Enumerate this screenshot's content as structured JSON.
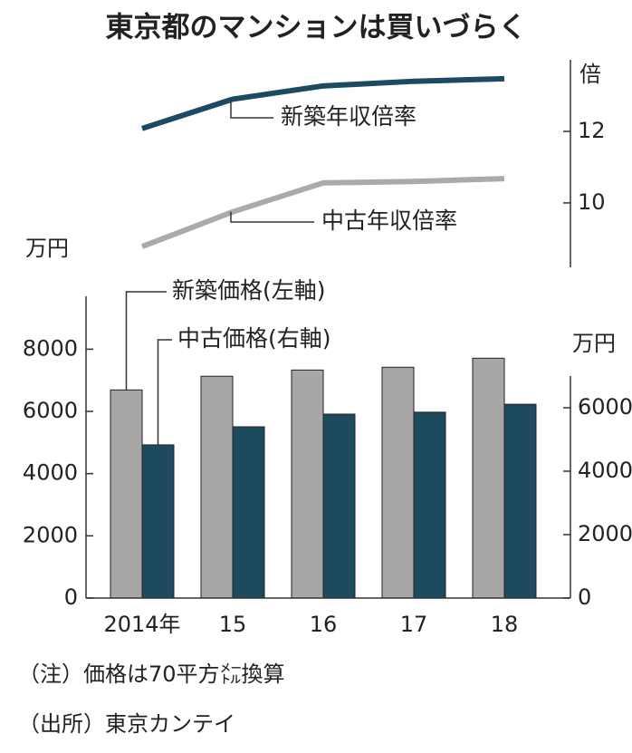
{
  "title": "東京都のマンションは買いづらく",
  "notes": [
    "（注）価格は70平方㍍換算",
    "（出所）東京カンテイ"
  ],
  "chart_data": [
    {
      "type": "line",
      "y_axis_position": "right",
      "ylabel": "倍",
      "categories": [
        null,
        null,
        null,
        null,
        null
      ],
      "ylim": [
        8.2,
        14
      ],
      "yticks": [
        10,
        12
      ],
      "series": [
        {
          "name": "新築年収倍率",
          "color": "#1b4a62",
          "values": [
            12.08,
            12.9,
            13.27,
            13.4,
            13.47
          ]
        },
        {
          "name": "中古年収倍率",
          "color": "#aaaaaa",
          "values": [
            8.78,
            9.75,
            10.56,
            10.6,
            10.68
          ]
        }
      ]
    },
    {
      "type": "bar",
      "ylabel": "万円",
      "y2label": "万円",
      "categories": [
        "2014年",
        "15",
        "16",
        "17",
        "18"
      ],
      "ylim": [
        0,
        9700
      ],
      "yticks": [
        0,
        2000,
        4000,
        6000,
        8000
      ],
      "y2lim": [
        0,
        7000
      ],
      "y2ticks": [
        0,
        2000,
        4000,
        6000
      ],
      "series": [
        {
          "name": "新築価格(左軸)",
          "color": "#a9a7a5",
          "values": [
            6690,
            7130,
            7330,
            7420,
            7710
          ]
        },
        {
          "name": "中古価格(右軸)",
          "color": "#1d4a5e",
          "axis": "y2",
          "values": [
            4830,
            5400,
            5800,
            5860,
            6110
          ]
        }
      ]
    }
  ]
}
